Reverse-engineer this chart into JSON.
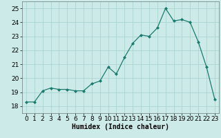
{
  "x": [
    0,
    1,
    2,
    3,
    4,
    5,
    6,
    7,
    8,
    9,
    10,
    11,
    12,
    13,
    14,
    15,
    16,
    17,
    18,
    19,
    20,
    21,
    22,
    23
  ],
  "y": [
    18.3,
    18.3,
    19.1,
    19.3,
    19.2,
    19.2,
    19.1,
    19.1,
    19.6,
    19.8,
    20.8,
    20.3,
    21.5,
    22.5,
    23.1,
    23.0,
    23.6,
    25.0,
    24.1,
    24.2,
    24.0,
    22.6,
    20.8,
    18.5
  ],
  "line_color": "#1a7a6e",
  "marker": "D",
  "marker_size": 2,
  "bg_color": "#cceae7",
  "grid_color": "#aad4d0",
  "xlabel": "Humidex (Indice chaleur)",
  "ylim": [
    17.5,
    25.5
  ],
  "xlim": [
    -0.5,
    23.5
  ],
  "yticks": [
    18,
    19,
    20,
    21,
    22,
    23,
    24,
    25
  ],
  "xticks": [
    0,
    1,
    2,
    3,
    4,
    5,
    6,
    7,
    8,
    9,
    10,
    11,
    12,
    13,
    14,
    15,
    16,
    17,
    18,
    19,
    20,
    21,
    22,
    23
  ],
  "label_fontsize": 7,
  "tick_fontsize": 6.5
}
